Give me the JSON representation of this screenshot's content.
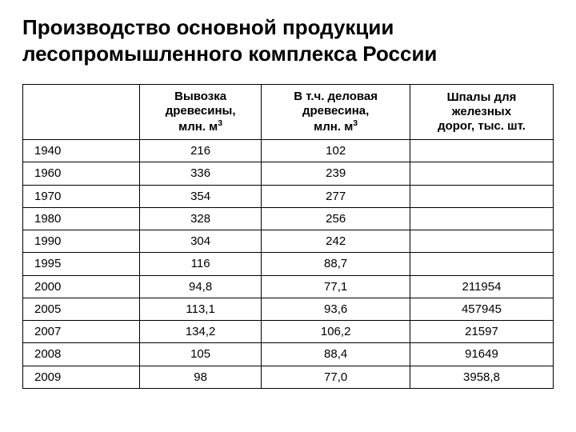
{
  "title": "Производство основной продукции лесопромышленного комплекса России",
  "table": {
    "columns": [
      {
        "label_lines": [
          ""
        ]
      },
      {
        "label_lines": [
          "Вывозка",
          "древесины,",
          "млн. м³"
        ]
      },
      {
        "label_lines": [
          "В т.ч. деловая",
          "древесина,",
          "млн. м³"
        ]
      },
      {
        "label_lines": [
          "Шпалы для",
          "железных",
          "дорог, тыс. шт."
        ]
      }
    ],
    "rows": [
      {
        "year": "1940",
        "v1": "216",
        "v2": "102",
        "v3": ""
      },
      {
        "year": "1960",
        "v1": "336",
        "v2": "239",
        "v3": ""
      },
      {
        "year": "1970",
        "v1": "354",
        "v2": "277",
        "v3": ""
      },
      {
        "year": "1980",
        "v1": "328",
        "v2": "256",
        "v3": ""
      },
      {
        "year": "1990",
        "v1": "304",
        "v2": "242",
        "v3": ""
      },
      {
        "year": "1995",
        "v1": "116",
        "v2": "88,7",
        "v3": ""
      },
      {
        "year": "2000",
        "v1": "94,8",
        "v2": "77,1",
        "v3": "211954"
      },
      {
        "year": "2005",
        "v1": "113,1",
        "v2": "93,6",
        "v3": "457945"
      },
      {
        "year": "2007",
        "v1": "134,2",
        "v2": "106,2",
        "v3": "21597"
      },
      {
        "year": "2008",
        "v1": "105",
        "v2": "88,4",
        "v3": "91649"
      },
      {
        "year": "2009",
        "v1": "98",
        "v2": "77,0",
        "v3": "3958,8"
      }
    ],
    "header_h1_1": "Вывозка",
    "header_h1_2": "древесины,",
    "header_h1_3a": "млн. м",
    "header_h1_3b": "3",
    "header_h2_1": "В т.ч. деловая",
    "header_h2_2": "древесина,",
    "header_h2_3a": "млн. м",
    "header_h2_3b": "3",
    "header_h3_1": "Шпалы для",
    "header_h3_2": "железных",
    "header_h3_3": "дорог, тыс. шт."
  }
}
